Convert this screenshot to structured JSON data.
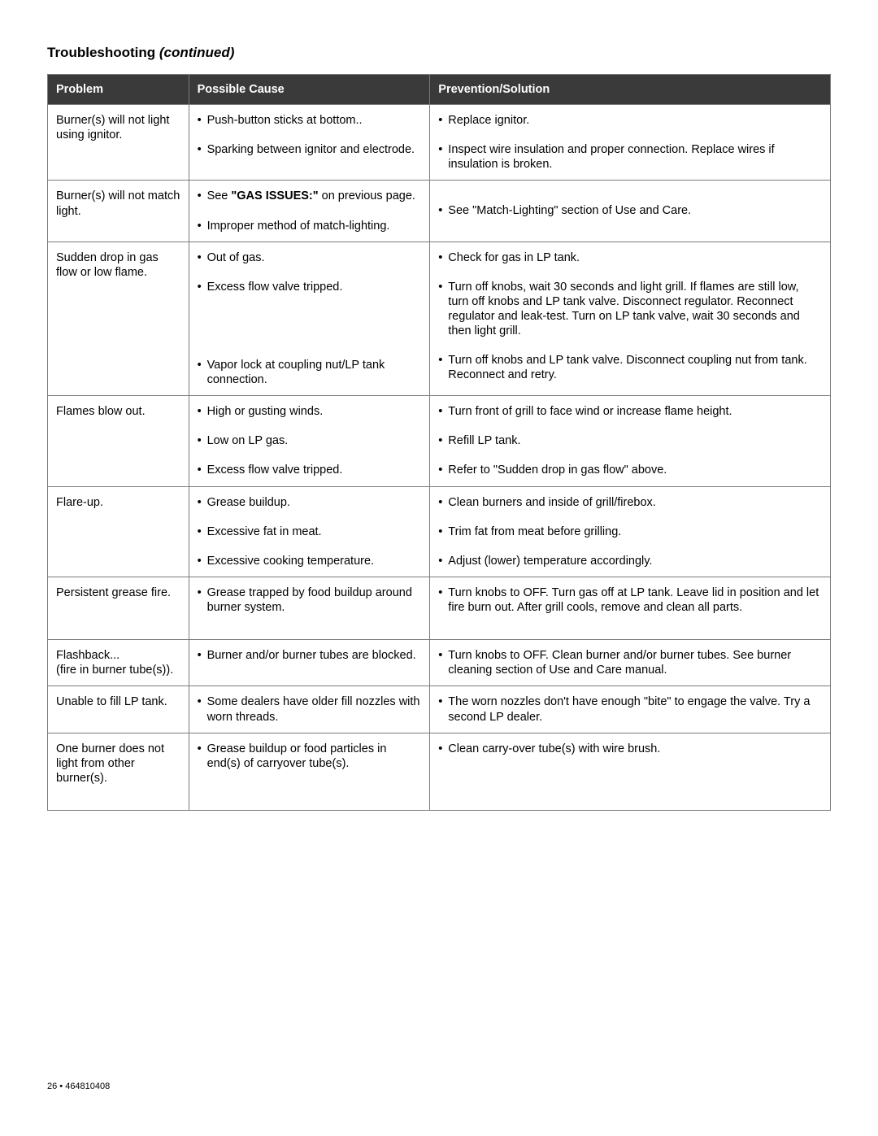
{
  "title": {
    "main": "Troubleshooting ",
    "continued": "(continued)"
  },
  "headers": {
    "problem": "Problem",
    "cause": "Possible Cause",
    "solution": "Prevention/Solution"
  },
  "rows": [
    {
      "problem": "Burner(s) will not  light using ignitor.",
      "causes": [
        "Push-button sticks at bottom..",
        "Sparking between ignitor and electrode."
      ],
      "solutions": [
        "Replace ignitor.",
        "Inspect wire insulation and proper connection. Replace wires if insulation is broken."
      ]
    },
    {
      "problem": "Burner(s) will not match light.",
      "causes_special": {
        "prefix": "See ",
        "bold": "\"GAS ISSUES:\"",
        "suffix": " on previous page."
      },
      "causes": [
        "Improper method of match-lighting."
      ],
      "solutions": [
        "See \"Match-Lighting\" section of Use and Care."
      ],
      "solution_offset": true
    },
    {
      "problem": "Sudden drop in gas flow or low flame.",
      "causes": [
        "Out of gas.",
        "Excess flow valve tripped.",
        "Vapor lock at coupling nut/LP tank connection."
      ],
      "solutions": [
        "Check for gas in LP tank.",
        "Turn off knobs, wait 30 seconds and light grill. If flames are still low, turn off knobs and LP tank valve. Disconnect regulator. Reconnect regulator and leak-test. Turn on LP tank valve, wait 30 seconds and then light grill.",
        "Turn off knobs and LP tank valve. Disconnect coupling nut from tank. Reconnect and retry."
      ],
      "cause_spacer": 1
    },
    {
      "problem": "Flames blow out.",
      "causes": [
        "High or gusting winds.",
        "Low on LP gas.",
        "Excess flow valve tripped."
      ],
      "solutions": [
        "Turn front of grill to face wind or increase flame height.",
        "Refill LP tank.",
        "Refer to \"Sudden drop in gas flow\" above."
      ]
    },
    {
      "problem": "Flare-up.",
      "causes": [
        "Grease buildup.",
        "Excessive fat in meat.",
        "Excessive cooking temperature."
      ],
      "solutions": [
        "Clean burners and inside of grill/firebox.",
        "Trim fat from meat before grilling.",
        "Adjust (lower) temperature accordingly."
      ]
    },
    {
      "problem": "Persistent grease fire.",
      "causes": [
        "Grease trapped by food buildup around burner system."
      ],
      "solutions": [
        "Turn knobs to OFF. Turn gas off at LP tank. Leave lid in position and let fire burn out. After grill cools, remove and clean all parts."
      ],
      "tall": true
    },
    {
      "problem": "Flashback...\n(fire in burner tube(s)).",
      "causes": [
        "Burner and/or burner tubes are blocked."
      ],
      "solutions": [
        "Turn knobs to OFF. Clean burner and/or burner tubes. See burner cleaning section of Use and Care manual."
      ]
    },
    {
      "problem": "Unable to fill LP tank.",
      "causes": [
        "Some dealers have older fill nozzles with worn threads."
      ],
      "solutions": [
        "The worn nozzles don't have enough \"bite\" to engage the valve. Try a second LP dealer."
      ]
    },
    {
      "problem": "One burner does not light from other burner(s).",
      "causes": [
        "Grease buildup or food particles in end(s) of carryover tube(s)."
      ],
      "solutions": [
        "Clean carry-over tube(s) with wire brush."
      ],
      "tall": true
    }
  ],
  "footer": "26 • 464810408"
}
